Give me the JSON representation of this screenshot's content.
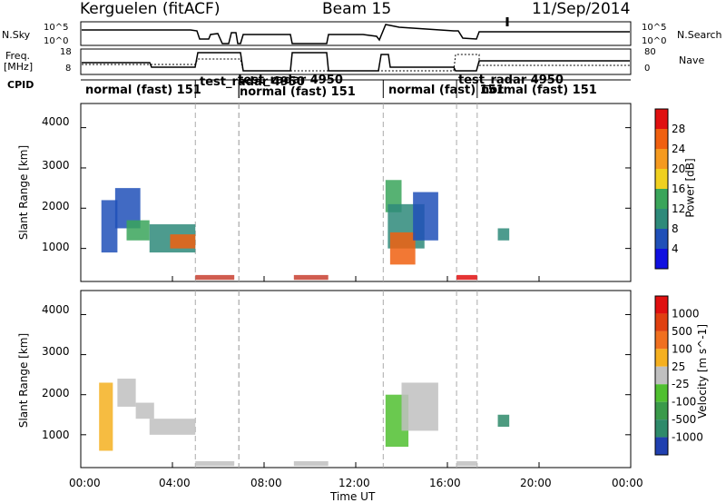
{
  "header": {
    "radar": "Kerguelen (fitACF)",
    "beam": "Beam 15",
    "date": "11/Sep/2014"
  },
  "top_panels": {
    "nsky_label": "N.Sky",
    "nsky_ticks": [
      "10^5",
      "10^0"
    ],
    "nsearch_label": "N.Search",
    "nsearch_ticks": [
      "10^5",
      "10^0"
    ],
    "freq_label_1": "Freq.",
    "freq_label_2": "[MHz]",
    "freq_ticks": [
      "18",
      "8"
    ],
    "nave_label": "Nave",
    "nave_ticks": [
      "80",
      "0"
    ],
    "cpid_label": "CPID"
  },
  "cpid_segments": [
    {
      "label": "normal (fast) 151",
      "start_h": 0.0,
      "end_h": 5.0
    },
    {
      "label": "test_radar 4950",
      "start_h": 5.0,
      "end_h": 6.9
    },
    {
      "label": "test_radar 4950",
      "start_h": 6.9,
      "end_h": 6.9
    },
    {
      "label": "normal (fast) 151",
      "start_h": 6.9,
      "end_h": 13.2
    },
    {
      "label": "normal (fast) 151",
      "start_h": 13.2,
      "end_h": 16.4
    },
    {
      "label": "test_radar 4950",
      "start_h": 16.4,
      "end_h": 17.3
    },
    {
      "label": "normal (fast) 151",
      "start_h": 17.3,
      "end_h": 24.0
    }
  ],
  "x_axis": {
    "label": "Time UT",
    "ticks": [
      "00:00",
      "04:00",
      "08:00",
      "12:00",
      "16:00",
      "20:00",
      "00:00"
    ]
  },
  "chart_data": [
    {
      "type": "heatmap",
      "name": "Power",
      "xlabel": "Time UT",
      "ylabel": "Slant Range [km]",
      "xlim": [
        0,
        24
      ],
      "ylim": [
        180,
        4600
      ],
      "yticks": [
        "1000",
        "2000",
        "3000",
        "4000"
      ],
      "colorbar_label": "Power [dB]",
      "colorbar_ticks": [
        "4",
        "8",
        "12",
        "16",
        "20",
        "24",
        "28"
      ],
      "colorbar_colors": [
        "#1010e0",
        "#2050b8",
        "#2e8a7a",
        "#3aa55a",
        "#f0d020",
        "#f59a20",
        "#f06010",
        "#e01010"
      ],
      "regions": [
        {
          "t0": 0.9,
          "t1": 1.6,
          "r0": 900,
          "r1": 2200,
          "color": "#2050b8"
        },
        {
          "t0": 1.5,
          "t1": 2.6,
          "r0": 1500,
          "r1": 2500,
          "color": "#2050b8"
        },
        {
          "t0": 2.0,
          "t1": 3.0,
          "r0": 1200,
          "r1": 1700,
          "color": "#3aa55a"
        },
        {
          "t0": 3.0,
          "t1": 5.0,
          "r0": 900,
          "r1": 1600,
          "color": "#2e8a7a"
        },
        {
          "t0": 3.9,
          "t1": 5.0,
          "r0": 1000,
          "r1": 1350,
          "color": "#f06010"
        },
        {
          "t0": 13.3,
          "t1": 14.0,
          "r0": 1900,
          "r1": 2700,
          "color": "#3aa55a"
        },
        {
          "t0": 13.4,
          "t1": 15.0,
          "r0": 1000,
          "r1": 2100,
          "color": "#2e8a7a"
        },
        {
          "t0": 13.5,
          "t1": 14.6,
          "r0": 600,
          "r1": 1400,
          "color": "#f06010"
        },
        {
          "t0": 14.5,
          "t1": 15.6,
          "r0": 1200,
          "r1": 2400,
          "color": "#2050b8"
        },
        {
          "t0": 16.4,
          "t1": 17.3,
          "r0": 220,
          "r1": 340,
          "color": "#e01010"
        },
        {
          "t0": 5.0,
          "t1": 6.7,
          "r0": 220,
          "r1": 340,
          "color": "#c84030"
        },
        {
          "t0": 9.3,
          "t1": 10.8,
          "r0": 220,
          "r1": 340,
          "color": "#c84030"
        },
        {
          "t0": 18.2,
          "t1": 18.7,
          "r0": 1200,
          "r1": 1500,
          "color": "#2e8a7a"
        }
      ]
    },
    {
      "type": "heatmap",
      "name": "Velocity",
      "xlabel": "Time UT",
      "ylabel": "Slant Range [km]",
      "xlim": [
        0,
        24
      ],
      "ylim": [
        180,
        4600
      ],
      "yticks": [
        "1000",
        "2000",
        "3000",
        "4000"
      ],
      "colorbar_label": "Velocity [m s^-1]",
      "colorbar_ticks": [
        "1000",
        "500",
        "100",
        "25",
        "-25",
        "-100",
        "-500",
        "-1000"
      ],
      "colorbar_colors": [
        "#2040b0",
        "#2e8a6a",
        "#3a9a4a",
        "#50c030",
        "#c0c0c0",
        "#f5b020",
        "#f07020",
        "#e04010",
        "#e01010"
      ],
      "regions": [
        {
          "t0": 0.8,
          "t1": 1.4,
          "r0": 600,
          "r1": 2300,
          "color": "#f5b020"
        },
        {
          "t0": 1.6,
          "t1": 2.4,
          "r0": 1700,
          "r1": 2400,
          "color": "#c0c0c0"
        },
        {
          "t0": 2.4,
          "t1": 3.2,
          "r0": 1400,
          "r1": 1800,
          "color": "#c0c0c0"
        },
        {
          "t0": 3.0,
          "t1": 5.0,
          "r0": 1000,
          "r1": 1400,
          "color": "#c0c0c0"
        },
        {
          "t0": 13.3,
          "t1": 14.3,
          "r0": 700,
          "r1": 2000,
          "color": "#50c030"
        },
        {
          "t0": 14.0,
          "t1": 15.6,
          "r0": 1100,
          "r1": 2300,
          "color": "#c0c0c0"
        },
        {
          "t0": 16.4,
          "t1": 17.3,
          "r0": 220,
          "r1": 340,
          "color": "#c0c0c0"
        },
        {
          "t0": 5.0,
          "t1": 6.7,
          "r0": 220,
          "r1": 340,
          "color": "#c0c0c0"
        },
        {
          "t0": 9.3,
          "t1": 10.8,
          "r0": 220,
          "r1": 340,
          "color": "#c0c0c0"
        },
        {
          "t0": 18.2,
          "t1": 18.7,
          "r0": 1200,
          "r1": 1500,
          "color": "#2e8a6a"
        }
      ]
    }
  ]
}
